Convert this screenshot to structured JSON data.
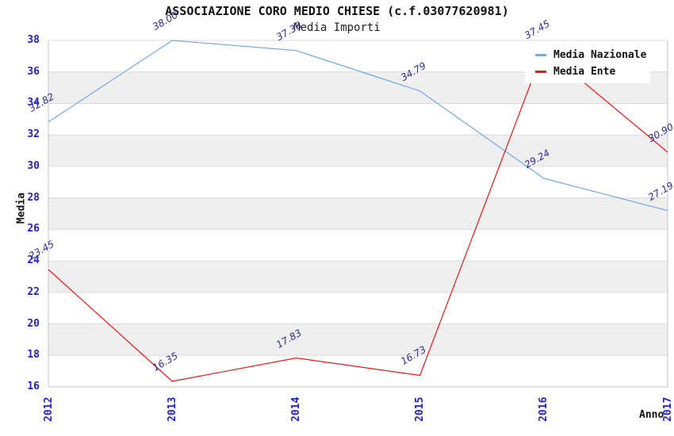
{
  "title": "ASSOCIAZIONE CORO MEDIO CHIESE (c.f.03077620981)",
  "subtitle": "Media Importi",
  "chart_data": {
    "type": "line",
    "x_categories": [
      "2012",
      "2013",
      "2014",
      "2015",
      "2016",
      "2017"
    ],
    "xlabel": "Anno",
    "ylabel": "Media",
    "ylim": [
      16,
      38
    ],
    "ytick_step": 2,
    "yticks": [
      16,
      18,
      20,
      22,
      24,
      26,
      28,
      30,
      32,
      34,
      36,
      38
    ],
    "grid": "horizontal-bands-alternating",
    "legend_position": "top-right",
    "point_labels_decimals": 2,
    "series": [
      {
        "name": "Media Nazionale",
        "color": "#74a9e6",
        "values": [
          32.82,
          38.0,
          37.36,
          34.79,
          29.24,
          27.19
        ]
      },
      {
        "name": "Media Ente",
        "color": "#e81818",
        "values": [
          23.45,
          16.35,
          17.83,
          16.73,
          37.45,
          30.9
        ]
      }
    ]
  },
  "colors": {
    "tick_label": "#2222cc",
    "point_label": "#2b2b94",
    "band": "#efefef",
    "gridline": "#dcdcdc",
    "frame": "#c4c4c4",
    "title": "#111111",
    "background": "#ffffff"
  }
}
